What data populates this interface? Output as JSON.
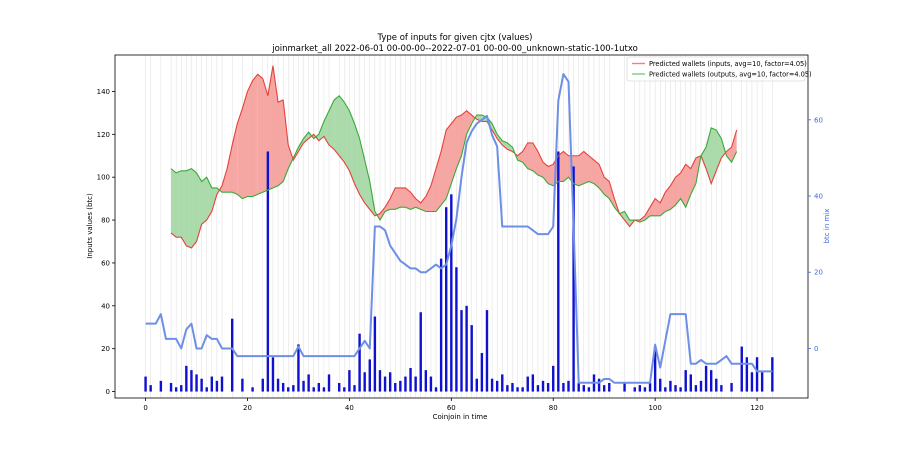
{
  "chart_data": {
    "type": "line",
    "title": "Type of inputs for given cjtx (values)",
    "subtitle": "joinmarket_all 2022-06-01 00-00-00--2022-07-01 00-00-00_unknown-static-100-1utxo",
    "xlabel": "Coinjoin in time",
    "ylabel": "Inputs values (btc)",
    "ylabel_right": "btc in mix",
    "xlim": [
      -6,
      130
    ],
    "ylim": [
      -3,
      157
    ],
    "ylim_right": [
      -13,
      77
    ],
    "x_ticks": [
      "0",
      "20",
      "40",
      "60",
      "80",
      "100",
      "120"
    ],
    "x_tick_values": [
      0,
      20,
      40,
      60,
      80,
      100,
      120
    ],
    "y_ticks": [
      "0",
      "20",
      "40",
      "60",
      "80",
      "100",
      "120",
      "140"
    ],
    "y_tick_values": [
      0,
      20,
      40,
      60,
      80,
      100,
      120,
      140
    ],
    "y_right_ticks": [
      "0",
      "20",
      "40",
      "60"
    ],
    "y_right_tick_values": [
      0,
      20,
      40,
      60
    ],
    "grid": "vertical lines at coinjoin positions",
    "legend_position": "top-right",
    "series": [
      {
        "name": "Predicted wallets (inputs, avg=10, factor=4.05)",
        "color": "#e8403a",
        "x": [
          5,
          6,
          7,
          8,
          9,
          10,
          11,
          12,
          13,
          14,
          15,
          16,
          17,
          18,
          19,
          20,
          21,
          22,
          23,
          24,
          25,
          26,
          27,
          28,
          29,
          30,
          31,
          32,
          33,
          34,
          35,
          36,
          37,
          38,
          39,
          40,
          41,
          42,
          43,
          44,
          45,
          46,
          47,
          48,
          49,
          50,
          51,
          52,
          53,
          54,
          55,
          56,
          57,
          58,
          59,
          60,
          61,
          62,
          63,
          64,
          65,
          66,
          67,
          68,
          69,
          70,
          71,
          72,
          73,
          74,
          75,
          76,
          77,
          78,
          79,
          80,
          81,
          82,
          83,
          84,
          85,
          86,
          87,
          88,
          89,
          90,
          91,
          92,
          93,
          94,
          95,
          96,
          97,
          98,
          99,
          100,
          101,
          102,
          103,
          104,
          105,
          106,
          107,
          108,
          109,
          110,
          111,
          112,
          113,
          114,
          115,
          116
        ],
        "values": [
          74,
          72,
          72,
          68,
          67,
          70,
          78,
          80,
          84,
          92,
          96,
          104,
          115,
          125,
          132,
          140,
          145,
          148,
          146,
          138,
          152,
          135,
          136,
          115,
          108,
          112,
          116,
          118,
          120,
          117,
          119,
          115,
          113,
          110,
          107,
          103,
          97,
          92,
          88,
          85,
          82,
          83,
          86,
          90,
          95,
          95,
          95,
          93,
          90,
          88,
          91,
          96,
          104,
          112,
          122,
          125,
          128,
          129,
          131,
          129,
          127,
          126,
          126,
          122,
          118,
          115,
          113,
          112,
          110,
          112,
          116,
          116,
          112,
          107,
          105,
          106,
          110,
          112,
          110,
          110,
          110,
          112,
          110,
          108,
          106,
          100,
          98,
          90,
          83,
          80,
          77,
          80,
          80,
          82,
          86,
          90,
          88,
          93,
          96,
          100,
          102,
          106,
          104,
          109,
          110,
          104,
          97,
          103,
          109,
          112,
          114,
          122
        ]
      },
      {
        "name": "Predicted wallets (outputs, avg=10, factor=4.05)",
        "color": "#3aa93a",
        "x": [
          5,
          6,
          7,
          8,
          9,
          10,
          11,
          12,
          13,
          14,
          15,
          16,
          17,
          18,
          19,
          20,
          21,
          22,
          23,
          24,
          25,
          26,
          27,
          28,
          29,
          30,
          31,
          32,
          33,
          34,
          35,
          36,
          37,
          38,
          39,
          40,
          41,
          42,
          43,
          44,
          45,
          46,
          47,
          48,
          49,
          50,
          51,
          52,
          53,
          54,
          55,
          56,
          57,
          58,
          59,
          60,
          61,
          62,
          63,
          64,
          65,
          66,
          67,
          68,
          69,
          70,
          71,
          72,
          73,
          74,
          75,
          76,
          77,
          78,
          79,
          80,
          81,
          82,
          83,
          84,
          85,
          86,
          87,
          88,
          89,
          90,
          91,
          92,
          93,
          94,
          95,
          96,
          97,
          98,
          99,
          100,
          101,
          102,
          103,
          104,
          105,
          106,
          107,
          108,
          109,
          110,
          111,
          112,
          113,
          114,
          115,
          116
        ],
        "values": [
          104,
          102,
          103,
          103,
          104,
          102,
          98,
          100,
          95,
          95,
          93,
          93,
          93,
          92,
          90,
          91,
          91,
          92,
          93,
          94,
          95,
          96,
          98,
          104,
          109,
          114,
          118,
          121,
          118,
          120,
          126,
          131,
          136,
          138,
          135,
          131,
          125,
          118,
          108,
          98,
          84,
          80,
          84,
          85,
          85,
          86,
          86,
          85,
          86,
          85,
          84,
          84,
          84,
          87,
          90,
          97,
          104,
          110,
          120,
          125,
          129,
          129,
          128,
          125,
          120,
          117,
          116,
          114,
          108,
          107,
          104,
          103,
          101,
          100,
          97,
          96,
          98,
          98,
          100,
          97,
          96,
          97,
          98,
          97,
          95,
          92,
          90,
          86,
          83,
          84,
          80,
          80,
          79,
          80,
          82,
          82,
          82,
          84,
          85,
          87,
          90,
          86,
          92,
          97,
          110,
          114,
          123,
          122,
          118,
          110,
          107,
          112
        ]
      },
      {
        "name": "btc in mix",
        "color": "#6d8fe6",
        "axis": "right",
        "x": [
          0,
          1,
          2,
          3,
          4,
          5,
          6,
          7,
          8,
          9,
          10,
          11,
          12,
          13,
          14,
          15,
          16,
          17,
          18,
          19,
          20,
          21,
          22,
          23,
          24,
          25,
          26,
          27,
          28,
          29,
          30,
          31,
          32,
          33,
          34,
          35,
          36,
          37,
          38,
          39,
          40,
          41,
          42,
          43,
          44,
          45,
          46,
          47,
          48,
          49,
          50,
          51,
          52,
          53,
          54,
          55,
          56,
          57,
          58,
          59,
          60,
          61,
          62,
          63,
          64,
          65,
          66,
          67,
          68,
          69,
          70,
          71,
          72,
          73,
          74,
          75,
          76,
          77,
          78,
          79,
          80,
          81,
          82,
          83,
          84,
          85,
          86,
          87,
          88,
          89,
          90,
          91,
          92,
          93,
          94,
          95,
          96,
          97,
          98,
          99,
          100,
          101,
          102,
          103,
          104,
          105,
          106,
          107,
          108,
          109,
          110,
          111,
          112,
          113,
          114,
          115,
          116,
          117,
          118,
          119,
          120,
          121,
          122,
          123
        ],
        "values": [
          6.5,
          6.5,
          6.5,
          9,
          2.5,
          2.5,
          2.5,
          0,
          5,
          6.5,
          0,
          0,
          3.5,
          2.5,
          2.5,
          0,
          0,
          0,
          -2,
          -2,
          -2,
          -2,
          -2,
          -2,
          -2,
          -2,
          -2,
          -2,
          -2,
          -2,
          0.5,
          -2,
          -2,
          -2,
          -2,
          -2,
          -2,
          -2,
          -2,
          -2,
          -2,
          -2,
          0,
          2,
          0,
          32,
          32,
          31,
          27,
          25,
          23,
          22,
          21,
          21,
          20,
          20,
          21,
          22,
          21,
          22,
          27,
          34,
          45,
          54,
          57,
          59,
          60,
          61,
          56,
          53,
          32,
          32,
          32,
          32,
          32,
          32,
          31,
          30,
          30,
          30,
          32,
          65,
          72,
          70,
          32,
          -9,
          -9,
          -9,
          -9,
          -9,
          -8,
          -8,
          -9,
          -9,
          -9,
          -9,
          -9,
          -9,
          -9,
          -9,
          1,
          -5,
          2,
          9,
          9,
          9,
          9,
          -4,
          -4,
          -3,
          -4,
          -4,
          -4,
          -3,
          -2,
          -4,
          -4,
          -4,
          -4,
          -4,
          -6,
          -6,
          -6,
          -6
        ]
      }
    ],
    "bars": {
      "name": "input values",
      "color": "#1010d0",
      "x": [
        0,
        1,
        3,
        5,
        6,
        7,
        8,
        9,
        10,
        11,
        12,
        13,
        14,
        15,
        17,
        19,
        21,
        23,
        24,
        25,
        26,
        27,
        28,
        29,
        30,
        31,
        32,
        33,
        34,
        35,
        36,
        38,
        39,
        40,
        41,
        42,
        43,
        44,
        45,
        46,
        47,
        48,
        49,
        50,
        51,
        52,
        53,
        54,
        55,
        56,
        57,
        58,
        59,
        60,
        61,
        62,
        63,
        64,
        65,
        66,
        67,
        68,
        69,
        70,
        71,
        72,
        73,
        74,
        75,
        76,
        77,
        78,
        79,
        80,
        81,
        82,
        83,
        84,
        85,
        86,
        87,
        88,
        89,
        90,
        91,
        94,
        96,
        97,
        98,
        99,
        100,
        101,
        102,
        103,
        104,
        105,
        106,
        107,
        108,
        109,
        110,
        111,
        112,
        113,
        115,
        117,
        118,
        119,
        120,
        121,
        123
      ],
      "values": [
        7,
        3,
        5,
        4,
        2,
        3,
        12,
        10,
        8,
        6,
        2,
        7,
        5,
        7,
        34,
        6,
        2,
        6,
        112,
        16,
        6,
        4,
        2,
        3,
        22,
        5,
        8,
        2,
        4,
        2,
        8,
        4,
        2,
        10,
        3,
        27,
        9,
        15,
        35,
        10,
        7,
        9,
        4,
        5,
        7,
        11,
        7,
        37,
        10,
        7,
        2,
        62,
        86,
        92,
        58,
        38,
        40,
        31,
        6,
        18,
        38,
        6,
        5,
        8,
        3,
        4,
        2,
        2,
        7,
        8,
        3,
        5,
        4,
        12,
        112,
        4,
        5,
        105,
        4,
        3,
        2,
        8,
        6,
        3,
        4,
        4,
        2,
        3,
        2,
        4,
        20,
        6,
        2,
        5,
        3,
        2,
        10,
        8,
        3,
        5,
        12,
        10,
        6,
        3,
        4,
        21,
        16,
        9,
        16,
        9,
        16
      ]
    }
  }
}
